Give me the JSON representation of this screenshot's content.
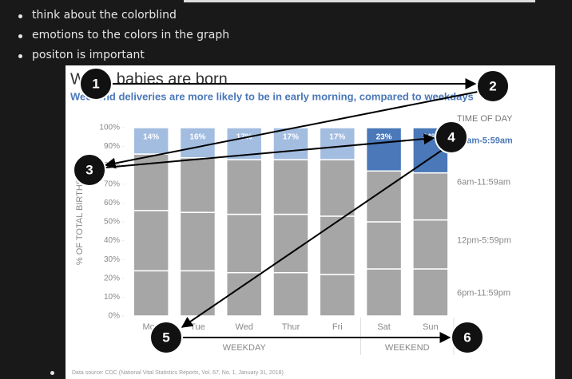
{
  "bullets": [
    "think about the colorblind",
    "emotions to the colors in the graph",
    "positon is important"
  ],
  "figure": {
    "chart_data": {
      "type": "stacked-bar",
      "title": "When babies are born",
      "subtitle": "Weekend deliveries are more likely to be in early morning, compared to weekdays",
      "y_label": "% OF TOTAL BIRTHS",
      "legend_title": "TIME OF DAY",
      "categories": [
        "Mon",
        "Tue",
        "Wed",
        "Thur",
        "Fri",
        "Sat",
        "Sun"
      ],
      "groups": [
        {
          "label": "WEEKDAY",
          "span": [
            0,
            4
          ]
        },
        {
          "label": "WEEKEND",
          "span": [
            5,
            6
          ]
        }
      ],
      "series": [
        {
          "name": "6pm-11:59pm",
          "color": "#a6a6a6",
          "values": [
            24,
            24,
            23,
            23,
            22,
            25,
            25
          ]
        },
        {
          "name": "12pm-5:59pm",
          "color": "#a6a6a6",
          "values": [
            32,
            31,
            31,
            31,
            31,
            25,
            26
          ]
        },
        {
          "name": "6am-11:59am",
          "color": "#a6a6a6",
          "values": [
            30,
            29,
            29,
            29,
            30,
            27,
            25
          ]
        },
        {
          "name": "12am-5:59am",
          "colors": [
            "#a3bde0",
            "#a3bde0",
            "#a3bde0",
            "#a3bde0",
            "#a3bde0",
            "#4a78b8",
            "#4a78b8"
          ],
          "values": [
            14,
            16,
            17,
            17,
            17,
            23,
            24
          ],
          "value_labels": [
            "14%",
            "16%",
            "17%",
            "17%",
            "17%",
            "23%",
            "24%"
          ]
        }
      ],
      "ylim": [
        0,
        100
      ],
      "yticks": [
        {
          "value": 0,
          "label": "0%"
        },
        {
          "value": 10,
          "label": "10%"
        },
        {
          "value": 20,
          "label": "20%"
        },
        {
          "value": 30,
          "label": "30%"
        },
        {
          "value": 40,
          "label": "40%"
        },
        {
          "value": 50,
          "label": "50%"
        },
        {
          "value": 60,
          "label": "60%"
        },
        {
          "value": 70,
          "label": "70%"
        },
        {
          "value": 80,
          "label": "80%"
        },
        {
          "value": 90,
          "label": "90%"
        },
        {
          "value": 100,
          "label": "100%"
        }
      ],
      "source": "Data source: CDC (National Vital Statistics Reports, Vol. 67, No. 1, January 31, 2018)"
    },
    "annotations": [
      "1",
      "2",
      "3",
      "4",
      "5",
      "6"
    ]
  }
}
